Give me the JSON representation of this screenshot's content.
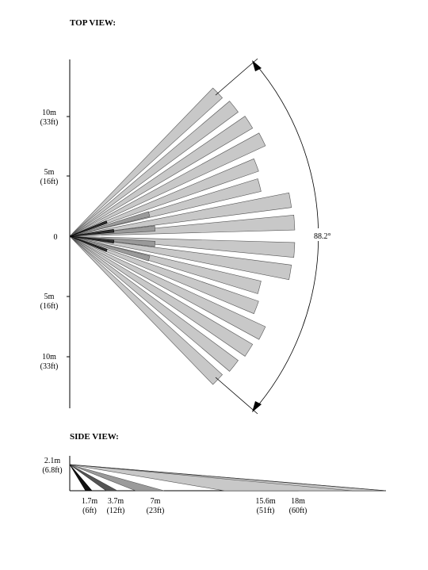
{
  "top_view": {
    "heading": "TOP VIEW:",
    "y_ticks": [
      {
        "line1": "10m",
        "line2": "(33ft)"
      },
      {
        "line1": "5m",
        "line2": "(16ft)"
      },
      {
        "line1": "0",
        "line2": ""
      },
      {
        "line1": "5m",
        "line2": "(16ft)"
      },
      {
        "line1": "10m",
        "line2": "(33ft)"
      }
    ],
    "angle_label": "88.2°"
  },
  "side_view": {
    "heading": "SIDE VIEW:",
    "height_label": {
      "line1": "2.1m",
      "line2": "(6.8ft)"
    },
    "distance_labels": [
      {
        "line1": "1.7m",
        "line2": "(6ft)"
      },
      {
        "line1": "3.7m",
        "line2": "(12ft)"
      },
      {
        "line1": "7m",
        "line2": "(23ft)"
      },
      {
        "line1": "15.6m",
        "line2": "(51ft)"
      },
      {
        "line1": "18m",
        "line2": "(60ft)"
      }
    ]
  },
  "colors": {
    "long_zone": "#c8c8c8",
    "mid_zone": "#9a9a9a",
    "near_zone": "#2e2e2e",
    "outline": "#555555"
  }
}
